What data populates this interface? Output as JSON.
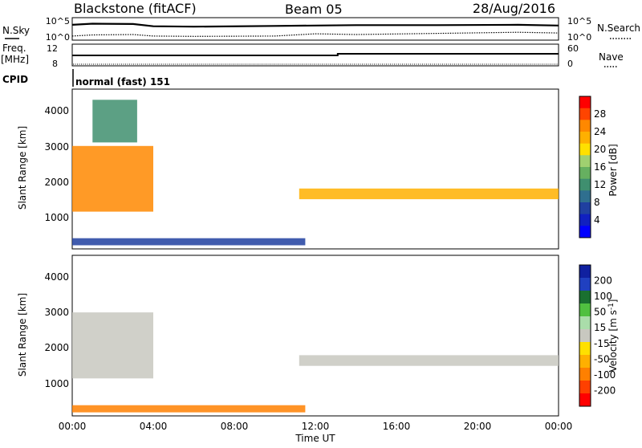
{
  "header": {
    "station": "Blackstone (fitACF)",
    "beam": "Beam 05",
    "date": "28/Aug/2016"
  },
  "left_labels": {
    "nsky": "N.Sky",
    "freq": "Freq.",
    "mhz": "[MHz]",
    "cpid": "CPID"
  },
  "right_labels": {
    "nsearch": "N.Search",
    "nave": "Nave"
  },
  "noise_axis": {
    "ticks_left": [
      "10^5",
      "10^0"
    ],
    "ticks_right": [
      "10^5",
      "10^0"
    ]
  },
  "freq_axis": {
    "ticks_left": [
      "12",
      "8"
    ],
    "ticks_right": [
      "60",
      "0"
    ]
  },
  "cpid_text": "normal (fast) 151",
  "x_axis": {
    "label": "Time UT",
    "ticks": [
      "00:00",
      "04:00",
      "08:00",
      "12:00",
      "16:00",
      "20:00",
      "00:00"
    ]
  },
  "y_axis": {
    "label": "Slant Range [km]",
    "ticks": [
      "1000",
      "2000",
      "3000",
      "4000"
    ]
  },
  "power_scale": {
    "label": "Power [dB]",
    "ticks": [
      "28",
      "24",
      "20",
      "16",
      "12",
      "8",
      "4"
    ],
    "colors": [
      "#ff0000",
      "#ff4400",
      "#ff8800",
      "#ffb000",
      "#ffe000",
      "#a0d070",
      "#66b060",
      "#3f8f6f",
      "#2f6f8f",
      "#2040a0",
      "#1020c0",
      "#0000ff"
    ]
  },
  "velocity_scale": {
    "label": "Velocity [m s^-1]",
    "ticks": [
      "200",
      "100",
      "50",
      "15",
      "-15",
      "-50",
      "-100",
      "-200"
    ],
    "colors": [
      "#1020a0",
      "#2040c0",
      "#1a7030",
      "#50c040",
      "#aaddaa",
      "#c8c8c0",
      "#ffe000",
      "#ffb000",
      "#ff8000",
      "#ff4000",
      "#ff0000"
    ]
  },
  "chart_data": [
    {
      "type": "line",
      "title": "Blackstone (fitACF) Beam 05 28/Aug/2016",
      "panel": "noise",
      "series": [
        {
          "name": "N.Sky",
          "style": "solid",
          "x": [
            0,
            1,
            3,
            4,
            6,
            10,
            12,
            14,
            18,
            22,
            24
          ],
          "values": [
            3.6,
            3.9,
            3.8,
            3.2,
            3.1,
            3.3,
            3.4,
            3.5,
            3.5,
            3.6,
            3.4
          ]
        },
        {
          "name": "N.Search",
          "style": "dotted",
          "x": [
            0,
            1,
            3,
            4,
            6,
            10,
            12,
            14,
            18,
            22,
            24
          ],
          "values": [
            0.6,
            0.9,
            1.0,
            0.6,
            0.5,
            0.6,
            1.2,
            1.0,
            1.3,
            1.6,
            1.4
          ]
        }
      ]
    },
    {
      "type": "line",
      "panel": "frequency",
      "series": [
        {
          "name": "Freq. [MHz]",
          "style": "solid",
          "x": [
            0,
            13.1,
            13.1,
            24
          ],
          "values": [
            10.2,
            10.2,
            10.6,
            10.6
          ]
        }
      ]
    },
    {
      "type": "heatmap",
      "panel": "power",
      "xlabel": "Time UT",
      "ylabel": "Slant Range [km]",
      "colorbar_label": "Power [dB]",
      "xlim": [
        0,
        24
      ],
      "ylim": [
        0,
        4500
      ],
      "clim": [
        0,
        30
      ],
      "bands": [
        {
          "x_start": 0,
          "x_end": 4,
          "range_start": 1050,
          "range_end": 2900,
          "power": 25
        },
        {
          "x_start": 1,
          "x_end": 3.2,
          "range_start": 3000,
          "range_end": 4200,
          "power": 12
        },
        {
          "x_start": 11.2,
          "x_end": 24,
          "range_start": 1400,
          "range_end": 1700,
          "power": 22
        },
        {
          "x_start": 0,
          "x_end": 11.5,
          "range_start": 100,
          "range_end": 300,
          "power": 6
        }
      ]
    },
    {
      "type": "heatmap",
      "panel": "velocity",
      "xlabel": "Time UT",
      "ylabel": "Slant Range [km]",
      "colorbar_label": "Velocity [m s^-1]",
      "xlim": [
        0,
        24
      ],
      "ylim": [
        0,
        4500
      ],
      "clim": [
        -250,
        250
      ],
      "bands": [
        {
          "x_start": 0,
          "x_end": 4,
          "range_start": 1050,
          "range_end": 2900,
          "velocity": 0
        },
        {
          "x_start": 11.2,
          "x_end": 24,
          "range_start": 1400,
          "range_end": 1700,
          "velocity": 0
        },
        {
          "x_start": 0,
          "x_end": 11.5,
          "range_start": 100,
          "range_end": 300,
          "velocity": -60
        }
      ]
    }
  ]
}
